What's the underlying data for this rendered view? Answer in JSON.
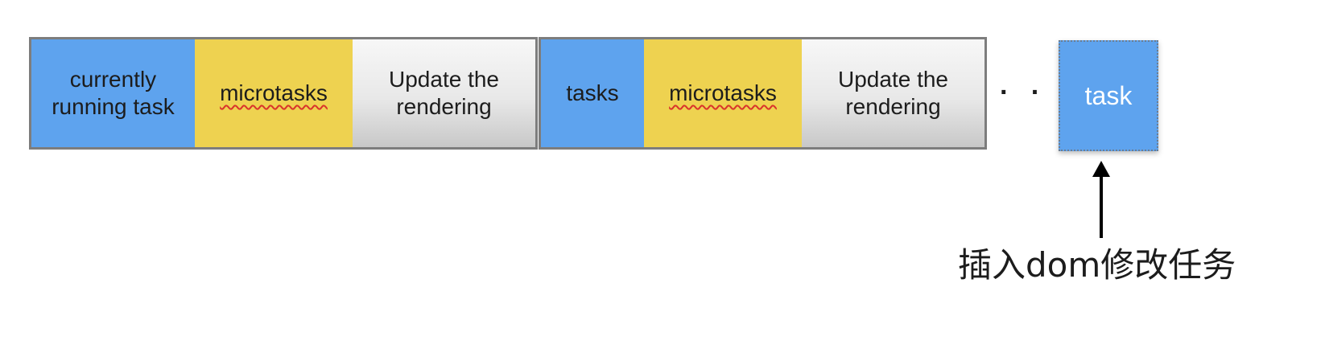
{
  "frames": [
    {
      "cells": [
        {
          "kind": "task",
          "label": "currently\nrunning task"
        },
        {
          "kind": "micro",
          "label": "microtasks"
        },
        {
          "kind": "render",
          "label": "Update the\nrendering"
        }
      ]
    },
    {
      "cells": [
        {
          "kind": "task",
          "label": "tasks"
        },
        {
          "kind": "micro",
          "label": "microtasks"
        },
        {
          "kind": "render",
          "label": "Update the\nrendering"
        }
      ]
    }
  ],
  "ellipsis": "· · ·",
  "new_task": {
    "label": "task"
  },
  "caption": "插入dom修改任务",
  "colors": {
    "task": "#5ea3ee",
    "microtask": "#eed250",
    "render": "#e0e0e0",
    "border": "#7d7d7d"
  }
}
